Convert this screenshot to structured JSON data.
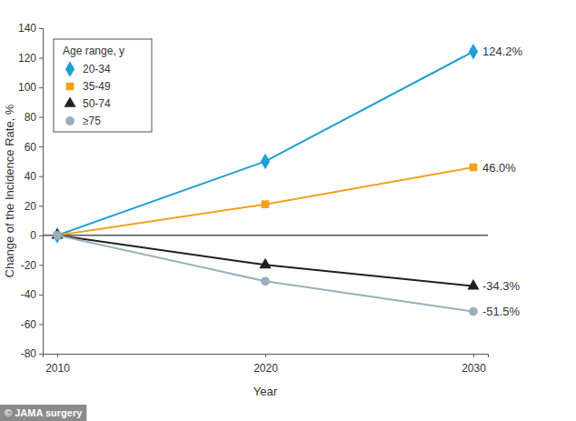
{
  "chart_data": {
    "type": "line",
    "x_label": "Year",
    "y_label": "Change of the Incidence Rate, %",
    "legend_title": "Age range, y",
    "source": "© JAMA surgery",
    "x": [
      2010,
      2020,
      2030
    ],
    "xlim": [
      2009.3,
      2030.7
    ],
    "xticks": [
      2010,
      2020,
      2030
    ],
    "ylim": [
      -80,
      140
    ],
    "yticks": [
      -80,
      -60,
      -40,
      -20,
      0,
      20,
      40,
      60,
      80,
      100,
      120,
      140
    ],
    "grid": false,
    "legend": "top-left",
    "data_labels": true,
    "series": [
      {
        "name": "20-34",
        "color": "#1fa0d3",
        "marker": "diamond",
        "values": [
          0,
          50,
          124.2
        ],
        "value_labels": [
          null,
          null,
          "124.2%"
        ]
      },
      {
        "name": "35-49",
        "color": "#f2a11f",
        "marker": "square",
        "values": [
          0,
          21,
          46.0
        ],
        "value_labels": [
          null,
          null,
          "46.0%"
        ]
      },
      {
        "name": "50-74",
        "color": "#231f20",
        "marker": "triangle",
        "values": [
          0,
          -20,
          -34.3
        ],
        "value_labels": [
          null,
          null,
          "-34.3%"
        ]
      },
      {
        "name": "≥75",
        "color": "#98afbd",
        "marker": "circle",
        "values": [
          0,
          -31,
          -51.5
        ],
        "value_labels": [
          null,
          null,
          "-51.5%"
        ]
      }
    ]
  }
}
